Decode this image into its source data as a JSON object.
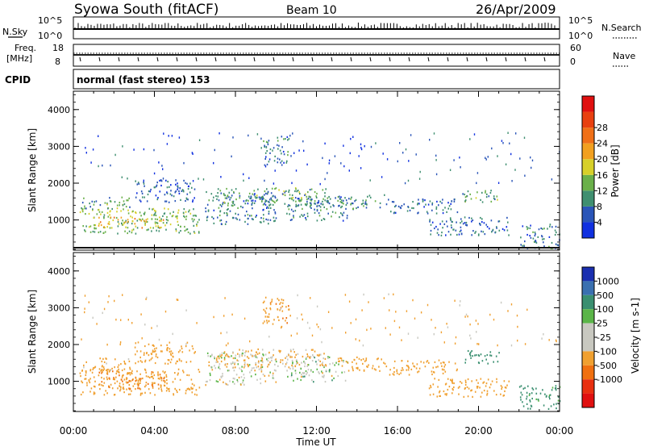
{
  "header": {
    "station": "Syowa South (fitACF)",
    "beam": "Beam 10",
    "date": "26/Apr/2009"
  },
  "noise_panel": {
    "left_label": "N.Sky",
    "right_label": "N.Search",
    "left_ticks": [
      "10^5",
      "10^0"
    ],
    "right_ticks": [
      "10^5",
      "10^0"
    ]
  },
  "freq_panel": {
    "left_label_1": "Freq.",
    "left_label_2": "[MHz]",
    "left_ticks": [
      "18",
      "8"
    ],
    "right_label": "Nave",
    "right_ticks": [
      "60",
      "0"
    ]
  },
  "cpid": {
    "label": "CPID",
    "value": "normal (fast stereo) 153"
  },
  "colors": {
    "power": [
      "#1030e0",
      "#2a55b8",
      "#3f8f70",
      "#6ab04a",
      "#d7d02a",
      "#f2a020",
      "#f07018",
      "#e84010",
      "#e01010"
    ],
    "velocity": [
      "#1a2fb0",
      "#3a70b0",
      "#3a8f70",
      "#5ab548",
      "#c8c8c0",
      "#c8c8c0",
      "#f0a030",
      "#f07010",
      "#e83010",
      "#e01010"
    ]
  },
  "chart_data": [
    {
      "type": "heatmap",
      "panel": "power",
      "ylabel": "Slant Range [km]",
      "ylim": [
        180,
        4500
      ],
      "yticks": [
        "1000",
        "2000",
        "3000",
        "4000"
      ],
      "colorbar_label": "Power [dB]",
      "colorbar_ticks": [
        "4",
        "8",
        "12",
        "16",
        "20",
        "24",
        "28"
      ],
      "regions": [
        {
          "t0": 0.3,
          "t1": 6.2,
          "r0": 650,
          "r1": 1350,
          "value": 14
        },
        {
          "t0": 1.2,
          "t1": 4.5,
          "r0": 800,
          "r1": 1100,
          "value": 20
        },
        {
          "t0": 0.4,
          "t1": 2.8,
          "r0": 1300,
          "r1": 1650,
          "value": 12
        },
        {
          "t0": 3.0,
          "t1": 6.0,
          "r0": 1500,
          "r1": 2100,
          "value": 6
        },
        {
          "t0": 6.5,
          "t1": 10.0,
          "r0": 900,
          "r1": 1800,
          "value": 8
        },
        {
          "t0": 7.0,
          "t1": 12.5,
          "r0": 1400,
          "r1": 1900,
          "value": 12
        },
        {
          "t0": 9.3,
          "t1": 10.6,
          "r0": 2500,
          "r1": 3300,
          "value": 8
        },
        {
          "t0": 10.5,
          "t1": 13.5,
          "r0": 1000,
          "r1": 1700,
          "value": 8
        },
        {
          "t0": 13.0,
          "t1": 15.5,
          "r0": 1300,
          "r1": 1700,
          "value": 10
        },
        {
          "t0": 15.5,
          "t1": 19.0,
          "r0": 1200,
          "r1": 1600,
          "value": 7
        },
        {
          "t0": 17.5,
          "t1": 21.5,
          "r0": 600,
          "r1": 1100,
          "value": 7
        },
        {
          "t0": 19.2,
          "t1": 21.0,
          "r0": 1500,
          "r1": 1850,
          "value": 12
        },
        {
          "t0": 22.0,
          "t1": 24.0,
          "r0": 250,
          "r1": 900,
          "value": 8
        }
      ]
    },
    {
      "type": "heatmap",
      "panel": "velocity",
      "ylabel": "Slant Range [km]",
      "xlabel": "Time UT",
      "xticks": [
        "00:00",
        "04:00",
        "08:00",
        "12:00",
        "16:00",
        "20:00",
        "00:00"
      ],
      "xlim": [
        0,
        24
      ],
      "ylim": [
        180,
        4500
      ],
      "yticks": [
        "1000",
        "2000",
        "3000",
        "4000"
      ],
      "colorbar_label": "Velocity [m s-1]",
      "colorbar_ticks": [
        "1000",
        "500",
        "100",
        "25",
        "-25",
        "-100",
        "-500",
        "-1000"
      ],
      "regions": [
        {
          "t0": 0.3,
          "t1": 6.2,
          "r0": 650,
          "r1": 1350,
          "value": -250
        },
        {
          "t0": 1.2,
          "t1": 4.5,
          "r0": 800,
          "r1": 1300,
          "value": -500
        },
        {
          "t0": 0.4,
          "t1": 2.8,
          "r0": 1300,
          "r1": 1650,
          "value": -200
        },
        {
          "t0": 3.0,
          "t1": 6.0,
          "r0": 1500,
          "r1": 2100,
          "value": -300
        },
        {
          "t0": 6.5,
          "t1": 10.0,
          "r0": 900,
          "r1": 1800,
          "value": -40
        },
        {
          "t0": 7.0,
          "t1": 12.5,
          "r0": 1400,
          "r1": 1900,
          "value": -150
        },
        {
          "t0": 9.3,
          "t1": 10.6,
          "r0": 2500,
          "r1": 3300,
          "value": -400
        },
        {
          "t0": 10.5,
          "t1": 13.5,
          "r0": 1000,
          "r1": 1700,
          "value": 0
        },
        {
          "t0": 13.0,
          "t1": 15.5,
          "r0": 1300,
          "r1": 1700,
          "value": -300
        },
        {
          "t0": 15.5,
          "t1": 19.0,
          "r0": 1200,
          "r1": 1600,
          "value": -250
        },
        {
          "t0": 17.5,
          "t1": 21.5,
          "r0": 600,
          "r1": 1100,
          "value": -350
        },
        {
          "t0": 19.2,
          "t1": 21.0,
          "r0": 1500,
          "r1": 1850,
          "value": 300
        },
        {
          "t0": 22.0,
          "t1": 24.0,
          "r0": 250,
          "r1": 900,
          "value": 200
        }
      ]
    }
  ]
}
